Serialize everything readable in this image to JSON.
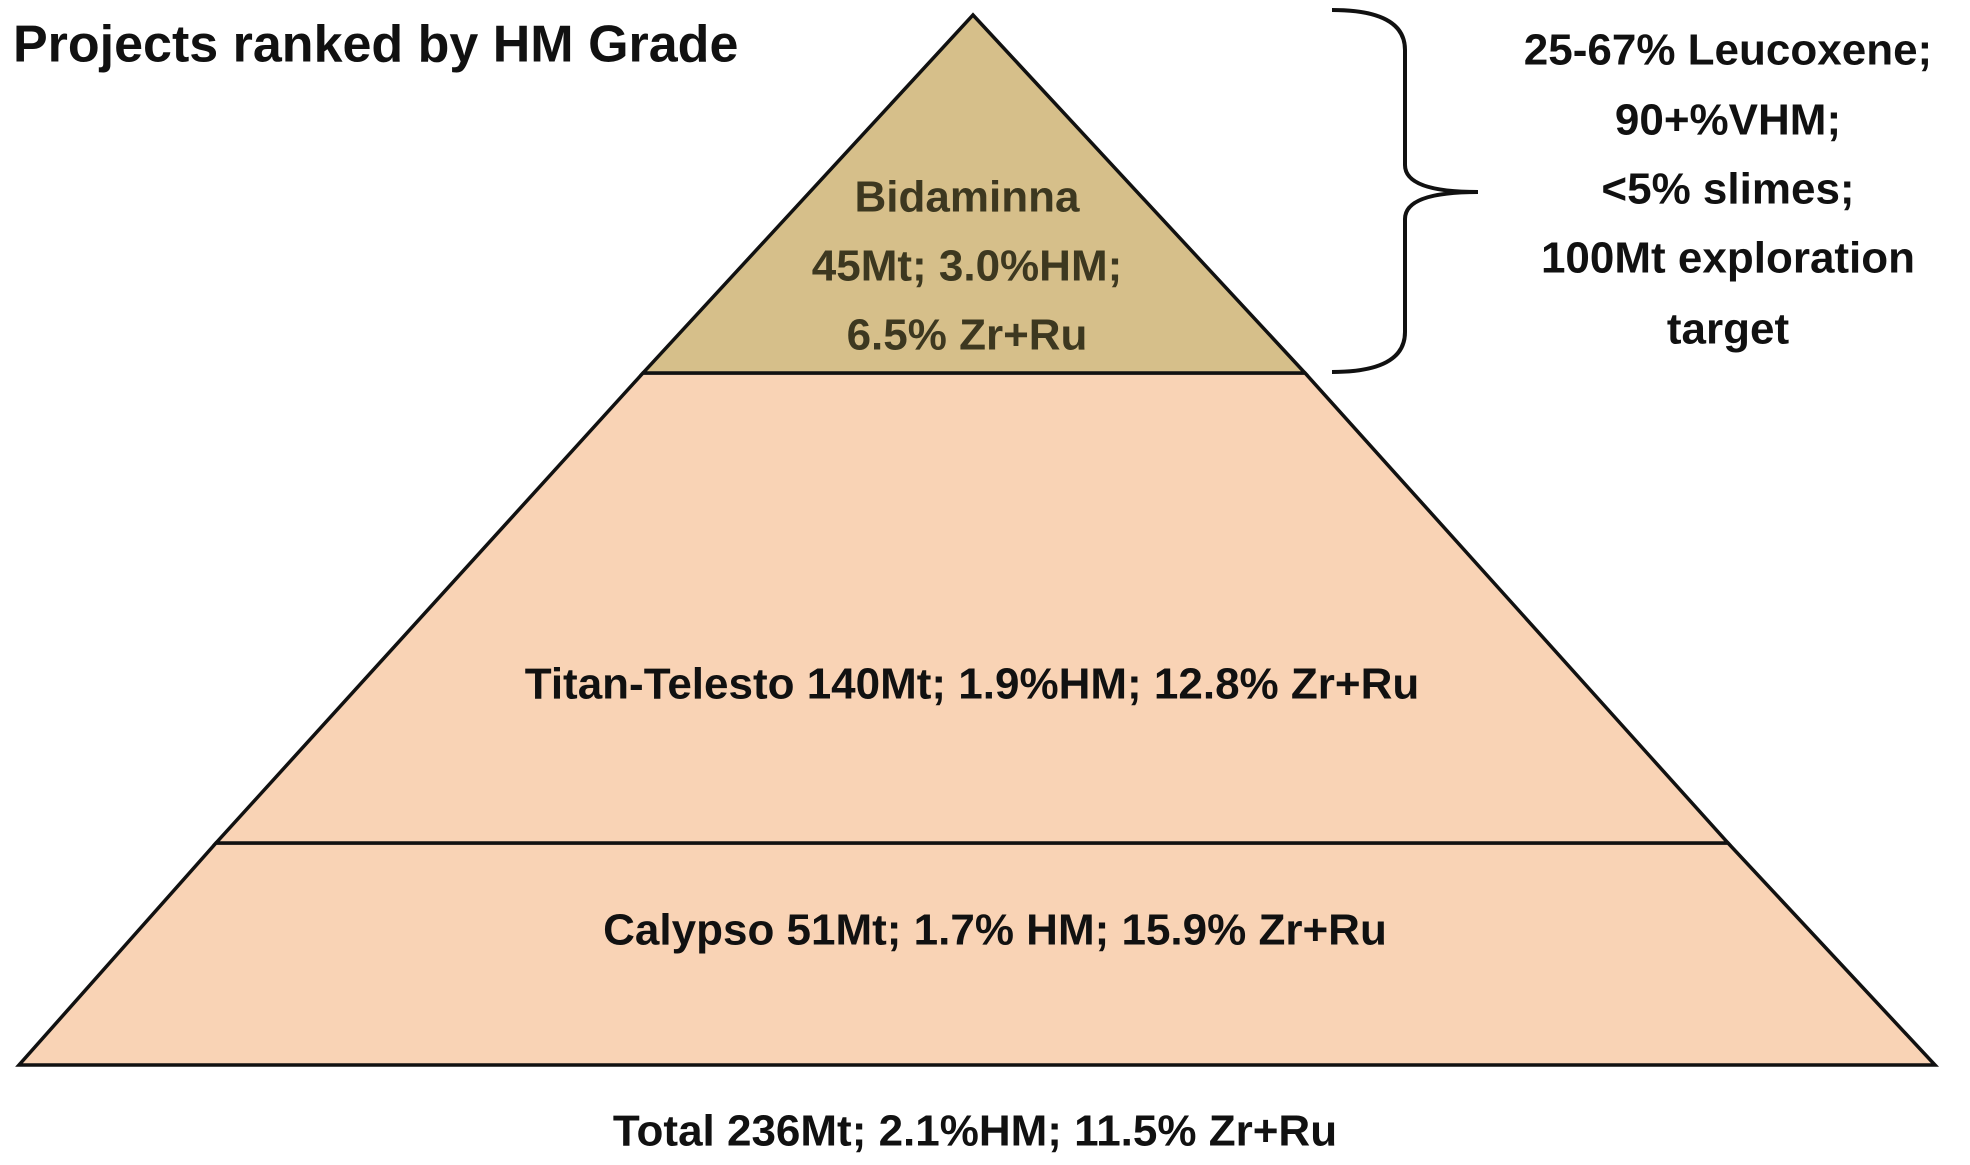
{
  "header": {
    "title": "Projects ranked by HM Grade"
  },
  "tiers": [
    {
      "lines": [
        "Bidaminna",
        "45Mt; 3.0%HM;",
        "6.5% Zr+Ru"
      ]
    },
    {
      "label": "Titan-Telesto 140Mt; 1.9%HM; 12.8% Zr+Ru"
    },
    {
      "label": "Calypso  51Mt; 1.7% HM; 15.9% Zr+Ru"
    }
  ],
  "annotation": {
    "lines": [
      "25-67% Leucoxene;",
      "90+%VHM;",
      "<5% slimes;",
      "100Mt exploration",
      "target"
    ]
  },
  "total": "Total  236Mt; 2.1%HM; 11.5% Zr+Ru"
}
